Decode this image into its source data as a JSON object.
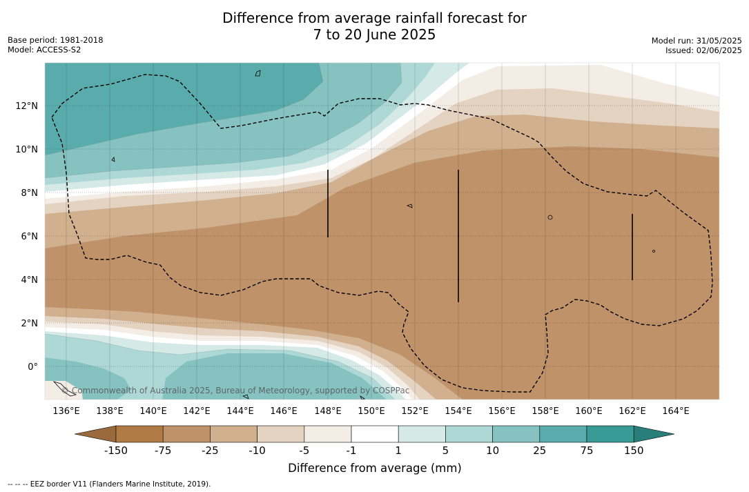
{
  "title_line1": "Difference from average rainfall forecast for",
  "title_line2": "7 to 20 June 2025",
  "base_period": "Base period: 1981-2018",
  "model": "Model: ACCESS-S2",
  "model_run": "Model run: 31/05/2025",
  "issued": "Issued: 02/06/2025",
  "copyright": "© Commonwealth of Australia 2025, Bureau of Meteorology, supported by COSPPac",
  "lat_labels": [
    "12°N",
    "10°N",
    "8°N",
    "6°N",
    "4°N",
    "2°N",
    "0°"
  ],
  "lon_labels": [
    "136°E",
    "138°E",
    "140°E",
    "142°E",
    "144°E",
    "146°E",
    "148°E",
    "150°E",
    "152°E",
    "154°E",
    "156°E",
    "158°E",
    "160°E",
    "162°E",
    "164°E"
  ],
  "colorbar": {
    "title": "Difference from average (mm)",
    "ticks": [
      "-150",
      "-75",
      "-25",
      "-10",
      "-5",
      "-1",
      "1",
      "5",
      "10",
      "25",
      "75",
      "150"
    ],
    "colors": [
      "#9b6a3c",
      "#b07a44",
      "#bf926a",
      "#d1b08f",
      "#e5d3c1",
      "#f3ede6",
      "#ffffff",
      "#d5e9e7",
      "#add8d6",
      "#86c2c0",
      "#5aabab",
      "#3a9a96",
      "#287e7a"
    ]
  },
  "footer": "--  --  -- EEZ border V11 (Flanders Marine Institute, 2019)."
}
